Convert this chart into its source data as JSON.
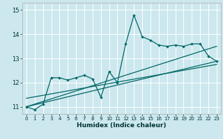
{
  "xlabel": "Humidex (Indice chaleur)",
  "background_color": "#cce8ee",
  "grid_color": "#ffffff",
  "line_color": "#006666",
  "xlim": [
    -0.5,
    23.5
  ],
  "ylim": [
    10.7,
    15.3
  ],
  "yticks": [
    11,
    12,
    13,
    14,
    15
  ],
  "xticks": [
    0,
    1,
    2,
    3,
    4,
    5,
    6,
    7,
    8,
    9,
    10,
    11,
    12,
    13,
    14,
    15,
    16,
    17,
    18,
    19,
    20,
    21,
    22,
    23
  ],
  "series": [
    [
      0,
      11.0
    ],
    [
      1,
      10.88
    ],
    [
      2,
      11.1
    ],
    [
      3,
      12.2
    ],
    [
      4,
      12.2
    ],
    [
      5,
      12.1
    ],
    [
      6,
      12.2
    ],
    [
      7,
      12.3
    ],
    [
      8,
      12.15
    ],
    [
      9,
      11.4
    ],
    [
      10,
      12.45
    ],
    [
      11,
      12.0
    ],
    [
      12,
      13.6
    ],
    [
      13,
      14.78
    ],
    [
      14,
      13.9
    ],
    [
      15,
      13.75
    ],
    [
      16,
      13.55
    ],
    [
      17,
      13.5
    ],
    [
      18,
      13.55
    ],
    [
      19,
      13.5
    ],
    [
      20,
      13.6
    ],
    [
      21,
      13.6
    ],
    [
      22,
      13.1
    ],
    [
      23,
      12.88
    ]
  ],
  "trend_lines": [
    [
      [
        0,
        11.0
      ],
      [
        23,
        13.5
      ]
    ],
    [
      [
        0,
        11.0
      ],
      [
        23,
        12.88
      ]
    ],
    [
      [
        0,
        11.35
      ],
      [
        23,
        12.75
      ]
    ]
  ]
}
